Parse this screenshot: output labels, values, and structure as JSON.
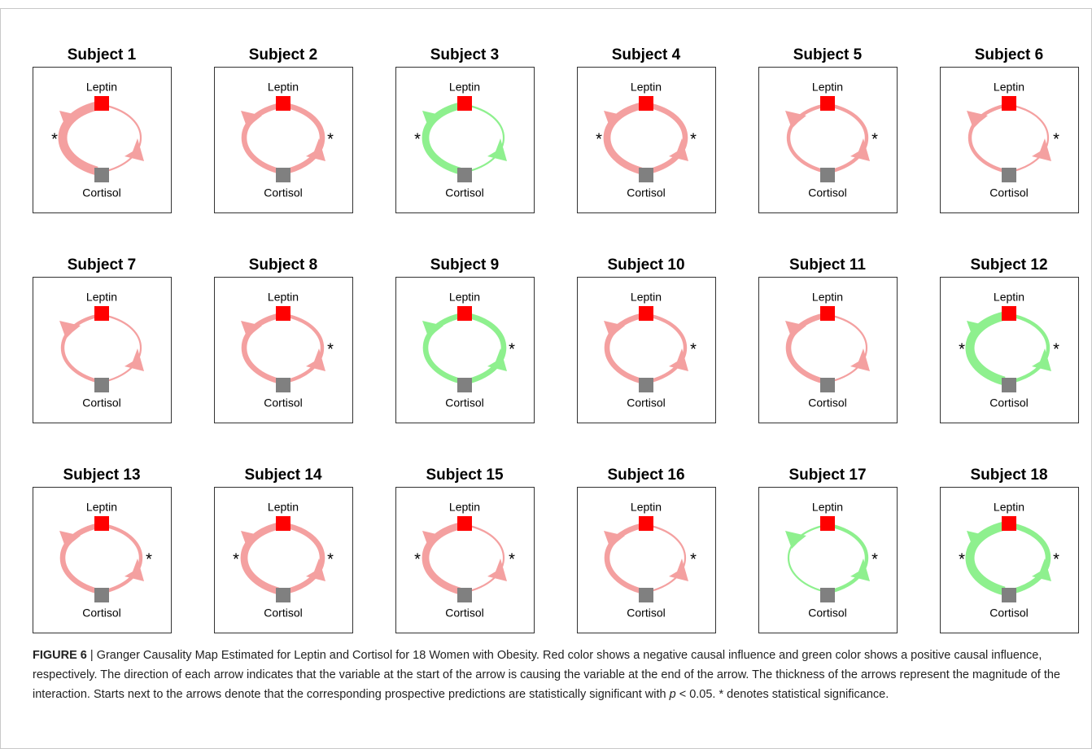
{
  "figure": {
    "panels": [
      {
        "title": "Subject 1",
        "top": "Leptin",
        "bottom": "Cortisol",
        "color": "#f4a0a0",
        "left_weight": 5,
        "right_weight": 1,
        "left_star": "*"
      },
      {
        "title": "Subject 2",
        "top": "Leptin",
        "bottom": "Cortisol",
        "color": "#f4a0a0",
        "left_weight": 3,
        "right_weight": 3,
        "right_star": "*"
      },
      {
        "title": "Subject 3",
        "top": "Leptin",
        "bottom": "Cortisol",
        "color": "#8ef08e",
        "left_weight": 4,
        "right_weight": 1,
        "left_star": "*"
      },
      {
        "title": "Subject 4",
        "top": "Leptin",
        "bottom": "Cortisol",
        "color": "#f4a0a0",
        "left_weight": 4,
        "right_weight": 3,
        "left_star": "*",
        "right_star": "*"
      },
      {
        "title": "Subject 5",
        "top": "Leptin",
        "bottom": "Cortisol",
        "color": "#f4a0a0",
        "left_weight": 2,
        "right_weight": 2,
        "right_star": "*"
      },
      {
        "title": "Subject 6",
        "top": "Leptin",
        "bottom": "Cortisol",
        "color": "#f4a0a0",
        "left_weight": 2,
        "right_weight": 1,
        "right_star": "*"
      },
      {
        "title": "Subject 7",
        "top": "Leptin",
        "bottom": "Cortisol",
        "color": "#f4a0a0",
        "left_weight": 2,
        "right_weight": 1
      },
      {
        "title": "Subject 8",
        "top": "Leptin",
        "bottom": "Cortisol",
        "color": "#f4a0a0",
        "left_weight": 3,
        "right_weight": 2,
        "right_star": "*"
      },
      {
        "title": "Subject 9",
        "top": "Leptin",
        "bottom": "Cortisol",
        "color": "#8ef08e",
        "left_weight": 3,
        "right_weight": 3,
        "right_star": "*"
      },
      {
        "title": "Subject 10",
        "top": "Leptin",
        "bottom": "Cortisol",
        "color": "#f4a0a0",
        "left_weight": 3,
        "right_weight": 2,
        "right_star": "*"
      },
      {
        "title": "Subject 11",
        "top": "Leptin",
        "bottom": "Cortisol",
        "color": "#f4a0a0",
        "left_weight": 3,
        "right_weight": 1
      },
      {
        "title": "Subject 12",
        "top": "Leptin",
        "bottom": "Cortisol",
        "color": "#8ef08e",
        "left_weight": 5,
        "right_weight": 2,
        "left_star": "*",
        "right_star": "*"
      },
      {
        "title": "Subject 13",
        "top": "Leptin",
        "bottom": "Cortisol",
        "color": "#f4a0a0",
        "left_weight": 3,
        "right_weight": 2,
        "right_star": "*"
      },
      {
        "title": "Subject 14",
        "top": "Leptin",
        "bottom": "Cortisol",
        "color": "#f4a0a0",
        "left_weight": 4,
        "right_weight": 3,
        "left_star": "*",
        "right_star": "*"
      },
      {
        "title": "Subject 15",
        "top": "Leptin",
        "bottom": "Cortisol",
        "color": "#f4a0a0",
        "left_weight": 4,
        "right_weight": 1,
        "left_star": "*",
        "right_star": "*"
      },
      {
        "title": "Subject 16",
        "top": "Leptin",
        "bottom": "Cortisol",
        "color": "#f4a0a0",
        "left_weight": 3,
        "right_weight": 1,
        "right_star": "*"
      },
      {
        "title": "Subject 17",
        "top": "Leptin",
        "bottom": "Cortisol",
        "color": "#8ef08e",
        "left_weight": 1,
        "right_weight": 2,
        "right_star": "*"
      },
      {
        "title": "Subject 18",
        "top": "Leptin",
        "bottom": "Cortisol",
        "color": "#8ef08e",
        "left_weight": 5,
        "right_weight": 3,
        "left_star": "*",
        "right_star": "*"
      }
    ],
    "top_node_color": "#ff0000",
    "bottom_node_color": "#808080"
  },
  "caption": {
    "label": "FIGURE 6",
    "separator": " | ",
    "text_1": "Granger Causality Map Estimated for Leptin and Cortisol for 18 Women with Obesity. Red color shows a negative causal influence and green color shows a positive causal influence, respectively. The direction of each arrow indicates that the variable at the start of the arrow is causing the variable at the end of the arrow. The thickness of the arrows represent the magnitude of the interaction. Starts next to the arrows denote that the corresponding prospective predictions are statistically significant with ",
    "italic": "p",
    "text_2": " < 0.05. * denotes statistical significance."
  }
}
